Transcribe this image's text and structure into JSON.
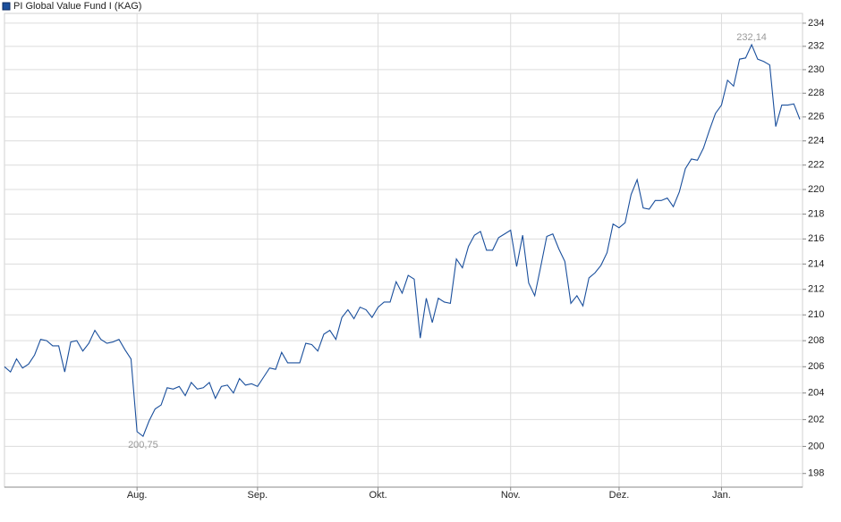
{
  "chart_data": {
    "type": "line",
    "categories": [
      null,
      null,
      null,
      null,
      null,
      null,
      null,
      null,
      null,
      null,
      null,
      null,
      null,
      null,
      null,
      null,
      null,
      null,
      null,
      null,
      null,
      null,
      "Aug.",
      null,
      null,
      null,
      null,
      null,
      null,
      null,
      null,
      null,
      null,
      null,
      null,
      null,
      null,
      null,
      null,
      null,
      null,
      null,
      "Sep.",
      null,
      null,
      null,
      null,
      null,
      null,
      null,
      null,
      null,
      null,
      null,
      null,
      null,
      null,
      null,
      null,
      null,
      null,
      null,
      "Okt.",
      null,
      null,
      null,
      null,
      null,
      null,
      null,
      null,
      null,
      null,
      null,
      null,
      null,
      null,
      null,
      null,
      null,
      null,
      null,
      null,
      null,
      "Nov.",
      null,
      null,
      null,
      null,
      null,
      null,
      null,
      null,
      null,
      null,
      null,
      null,
      null,
      null,
      null,
      null,
      null,
      "Dez.",
      null,
      null,
      null,
      null,
      null,
      null,
      null,
      null,
      null,
      null,
      null,
      null,
      null,
      null,
      null,
      null,
      "Jan.",
      null,
      null,
      null,
      null,
      null,
      null,
      null,
      null,
      null,
      null,
      null,
      null,
      null
    ],
    "series": [
      {
        "name": "PI Global Value Fund I (KAG)",
        "color": "#1a4f9c",
        "values": [
          206.0,
          205.6,
          206.6,
          205.9,
          206.2,
          206.9,
          208.1,
          208.0,
          207.6,
          207.6,
          205.6,
          207.9,
          208.0,
          207.2,
          207.8,
          208.8,
          208.1,
          207.8,
          207.9,
          208.1,
          207.3,
          206.6,
          201.1,
          200.75,
          201.9,
          202.8,
          203.1,
          204.4,
          204.3,
          204.5,
          203.8,
          204.8,
          204.3,
          204.4,
          204.8,
          203.6,
          204.5,
          204.6,
          204.0,
          205.1,
          204.6,
          204.7,
          204.5,
          205.2,
          205.9,
          205.8,
          207.1,
          206.3,
          206.3,
          206.3,
          207.8,
          207.7,
          207.2,
          208.5,
          208.8,
          208.1,
          209.8,
          210.4,
          209.7,
          210.6,
          210.4,
          209.8,
          210.6,
          211.0,
          211.0,
          212.6,
          211.7,
          213.1,
          212.8,
          208.2,
          211.3,
          209.4,
          211.3,
          211.0,
          210.9,
          214.4,
          213.7,
          215.4,
          216.3,
          216.6,
          215.1,
          215.1,
          216.1,
          216.4,
          216.7,
          213.8,
          216.3,
          212.5,
          211.5,
          213.8,
          216.2,
          216.4,
          215.2,
          214.2,
          210.9,
          211.5,
          210.7,
          212.9,
          213.3,
          213.9,
          214.9,
          217.2,
          216.9,
          217.3,
          219.6,
          220.8,
          218.5,
          218.4,
          219.1,
          219.1,
          219.3,
          218.6,
          219.8,
          221.7,
          222.5,
          222.4,
          223.4,
          224.9,
          226.3,
          227.0,
          229.1,
          228.6,
          230.9,
          231.0,
          232.14,
          230.9,
          230.7,
          230.4,
          225.2,
          227.0,
          227.0,
          227.1,
          225.8
        ],
        "value_labels": [
          null,
          null,
          null,
          null,
          null,
          null,
          null,
          null,
          null,
          null,
          null,
          null,
          null,
          null,
          null,
          null,
          null,
          null,
          null,
          null,
          null,
          null,
          null,
          "200,75",
          null,
          null,
          null,
          null,
          null,
          null,
          null,
          null,
          null,
          null,
          null,
          null,
          null,
          null,
          null,
          null,
          null,
          null,
          null,
          null,
          null,
          null,
          null,
          null,
          null,
          null,
          null,
          null,
          null,
          null,
          null,
          null,
          null,
          null,
          null,
          null,
          null,
          null,
          null,
          null,
          null,
          null,
          null,
          null,
          null,
          null,
          null,
          null,
          null,
          null,
          null,
          null,
          null,
          null,
          null,
          null,
          null,
          null,
          null,
          null,
          null,
          null,
          null,
          null,
          null,
          null,
          null,
          null,
          null,
          null,
          null,
          null,
          null,
          null,
          null,
          null,
          null,
          null,
          null,
          null,
          null,
          null,
          null,
          null,
          null,
          null,
          null,
          null,
          null,
          null,
          null,
          null,
          null,
          null,
          null,
          null,
          null,
          null,
          null,
          null,
          "232,14",
          null,
          null,
          null,
          null,
          null,
          null,
          null,
          null
        ]
      }
    ],
    "ylim": [
      197,
      234.85
    ],
    "y_scale": "log",
    "yticks": [
      198,
      200,
      202,
      204,
      206,
      208,
      210,
      212,
      214,
      216,
      218,
      220,
      222,
      224,
      226,
      228,
      230,
      232,
      234
    ],
    "grid": true
  }
}
